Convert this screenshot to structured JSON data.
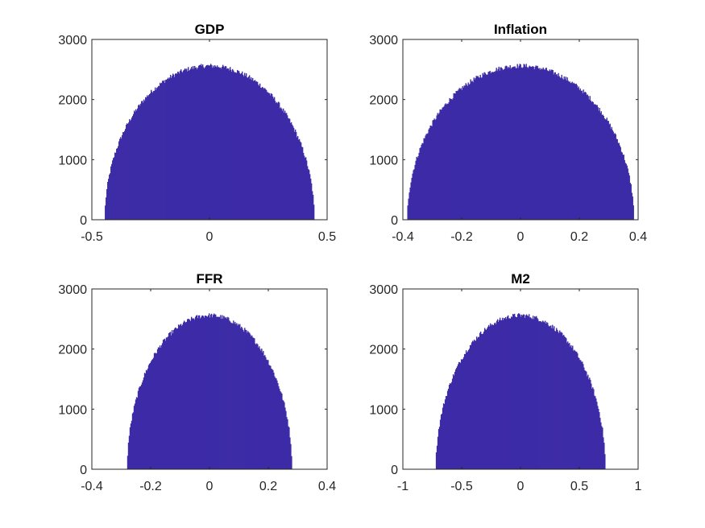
{
  "chart_data": [
    {
      "type": "bar",
      "subtype": "histogram",
      "title": "GDP",
      "color": "#3c2ba6",
      "xlim": [
        -0.5,
        0.5
      ],
      "ylim": [
        0,
        3000
      ],
      "xticks": [
        -0.5,
        0,
        0.5
      ],
      "xtick_labels": [
        "-0.5",
        "0",
        "0.5"
      ],
      "yticks": [
        0,
        1000,
        2000,
        3000
      ],
      "ytick_labels": [
        "0",
        "1000",
        "2000",
        "3000"
      ],
      "support": [
        -0.445,
        0.445
      ],
      "peak": 2560,
      "grid": false
    },
    {
      "type": "bar",
      "subtype": "histogram",
      "title": "Inflation",
      "color": "#3c2ba6",
      "xlim": [
        -0.4,
        0.4
      ],
      "ylim": [
        0,
        3000
      ],
      "xticks": [
        -0.4,
        -0.2,
        0,
        0.2,
        0.4
      ],
      "xtick_labels": [
        "-0.4",
        "-0.2",
        "0",
        "0.2",
        "0.4"
      ],
      "yticks": [
        0,
        1000,
        2000,
        3000
      ],
      "ytick_labels": [
        "0",
        "1000",
        "2000",
        "3000"
      ],
      "support": [
        -0.385,
        0.385
      ],
      "peak": 2560,
      "grid": false
    },
    {
      "type": "bar",
      "subtype": "histogram",
      "title": "FFR",
      "color": "#3c2ba6",
      "xlim": [
        -0.4,
        0.4
      ],
      "ylim": [
        0,
        3000
      ],
      "xticks": [
        -0.4,
        -0.2,
        0,
        0.2,
        0.4
      ],
      "xtick_labels": [
        "-0.4",
        "-0.2",
        "0",
        "0.2",
        "0.4"
      ],
      "yticks": [
        0,
        1000,
        2000,
        3000
      ],
      "ytick_labels": [
        "0",
        "1000",
        "2000",
        "3000"
      ],
      "support": [
        -0.28,
        0.28
      ],
      "peak": 2560,
      "grid": false
    },
    {
      "type": "bar",
      "subtype": "histogram",
      "title": "M2",
      "color": "#3c2ba6",
      "xlim": [
        -1,
        1
      ],
      "ylim": [
        0,
        3000
      ],
      "xticks": [
        -1,
        -0.5,
        0,
        0.5,
        1
      ],
      "xtick_labels": [
        "-1",
        "-0.5",
        "0",
        "0.5",
        "1"
      ],
      "yticks": [
        0,
        1000,
        2000,
        3000
      ],
      "ytick_labels": [
        "0",
        "1000",
        "2000",
        "3000"
      ],
      "support": [
        -0.72,
        0.72
      ],
      "peak": 2560,
      "grid": false
    }
  ]
}
